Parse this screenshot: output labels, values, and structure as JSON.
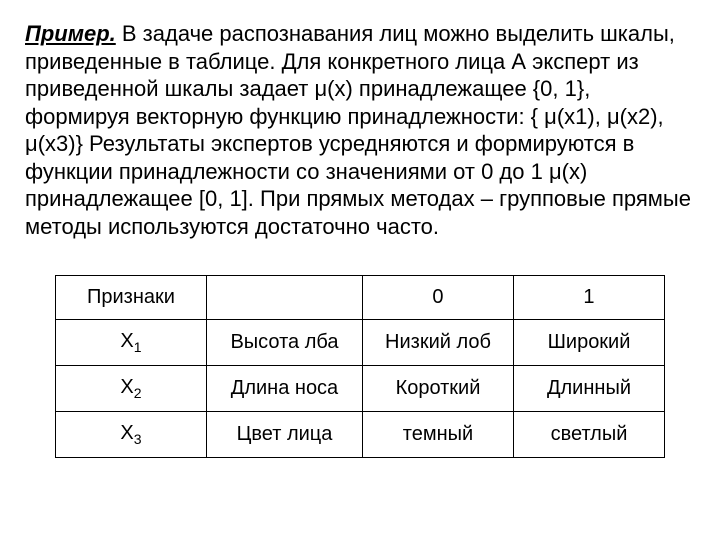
{
  "paragraph": {
    "title": "Пример.",
    "body_part1": " В задаче распознавания лиц можно выделить шкалы, приведенные в таблице. Для конкретного лица А эксперт из приведенной шкалы задает ",
    "mu1": "μ",
    "body_part2": "(x) принадлежащее {0, 1}, формируя векторную функцию принадлежности: { ",
    "mu2": "μ",
    "body_part3": "(x1), ",
    "mu3": "μ",
    "body_part4": "(x2), ",
    "mu4": "μ",
    "body_part5": "(x3)} Результаты экспертов усредняются и формируются в функции принадлежности со значениями от 0 до 1 ",
    "mu5": "μ",
    "body_part6": "(x) принадлежащее [0, 1]. При прямых методах – групповые прямые методы используются достаточно часто."
  },
  "table": {
    "header": {
      "col1": "Признаки",
      "col2": "",
      "col3": "0",
      "col4": "1"
    },
    "rows": [
      {
        "feature": "X",
        "sub": "1",
        "desc": "Высота лба",
        "val0": "Низкий лоб",
        "val1": "Широкий"
      },
      {
        "feature": "X",
        "sub": "2",
        "desc": "Длина носа",
        "val0": "Короткий",
        "val1": "Длинный"
      },
      {
        "feature": "X",
        "sub": "3",
        "desc": "Цвет лица",
        "val0": "темный",
        "val1": "светлый"
      }
    ]
  }
}
